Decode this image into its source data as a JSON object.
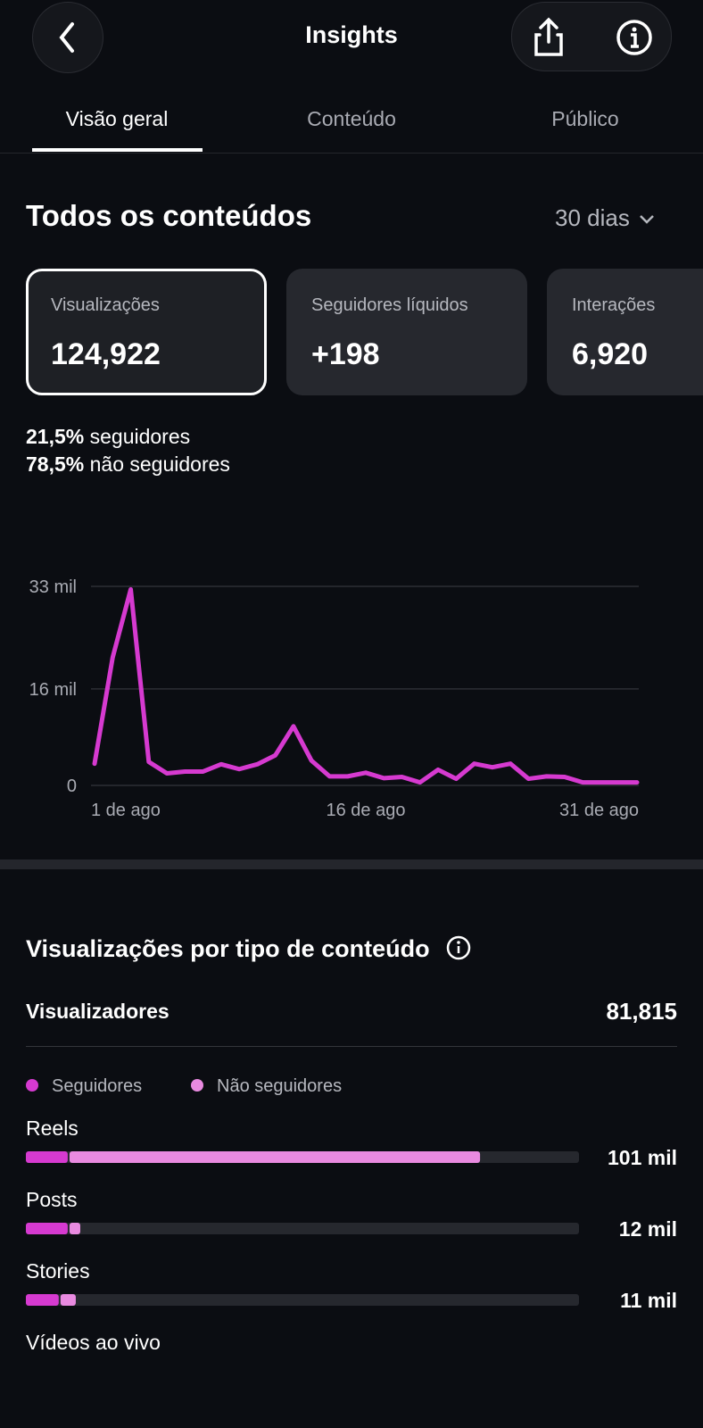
{
  "header": {
    "title": "Insights"
  },
  "tabs": [
    "Visão geral",
    "Conteúdo",
    "Público"
  ],
  "section": {
    "title": "Todos os conteúdos",
    "period": "30 dias"
  },
  "cards": [
    {
      "label": "Visualizações",
      "value": "124,922"
    },
    {
      "label": "Seguidores líquidos",
      "value": "+198"
    },
    {
      "label": "Interações",
      "value": "6,920"
    }
  ],
  "audience_split": [
    {
      "share": "21,5%",
      "label": "seguidores"
    },
    {
      "share": "78,5%",
      "label": "não seguidores"
    }
  ],
  "breakdown": {
    "title": "Visualizações por tipo de conteúdo",
    "viewers_label": "Visualizadores",
    "viewers_value": "81,815"
  },
  "chart_data": [
    {
      "type": "line",
      "color": "#d63ad0",
      "grid": true,
      "categories": [
        "1 de ago",
        null,
        null,
        null,
        null,
        null,
        null,
        null,
        null,
        null,
        null,
        null,
        null,
        null,
        null,
        "16 de ago",
        null,
        null,
        null,
        null,
        null,
        null,
        null,
        null,
        null,
        null,
        null,
        null,
        null,
        null,
        "31 de ago"
      ],
      "values": [
        3600,
        21200,
        32500,
        3900,
        2000,
        2300,
        2300,
        3500,
        2700,
        3500,
        5000,
        9800,
        4100,
        1500,
        1500,
        2100,
        1200,
        1400,
        500,
        2600,
        1100,
        3600,
        3000,
        3600,
        1100,
        1500,
        1400,
        500,
        500,
        500,
        500
      ],
      "ylim": [
        0,
        33000
      ],
      "yticks": [
        0,
        {
          "value": 16000,
          "label": "16 mil"
        },
        {
          "value": 33000,
          "label": "33 mil"
        }
      ]
    },
    {
      "type": "stacked-bar",
      "orientation": "horizontal",
      "track_color": "#26282e",
      "categories": [
        "Reels",
        "Posts",
        "Stories",
        "Vídeos ao vivo"
      ],
      "series": [
        {
          "name": "Seguidores",
          "color": "#d63ad0",
          "values": [
            9700,
            9700,
            7700,
            null
          ]
        },
        {
          "name": "Não seguidores",
          "color": "#e98ae0",
          "values": [
            91300,
            2400,
            3400,
            null
          ]
        }
      ],
      "totals": [
        101000,
        12000,
        11000,
        null
      ],
      "total_labels": [
        "101 mil",
        "12 mil",
        "11 mil",
        null
      ],
      "xlim": [
        0,
        123000
      ]
    }
  ]
}
